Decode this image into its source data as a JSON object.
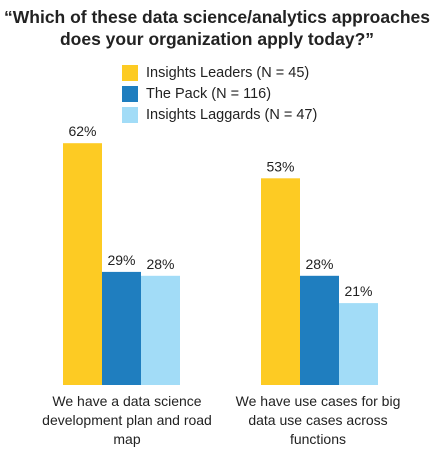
{
  "chart_data": {
    "type": "bar",
    "title": "“Which of these data science/analytics approaches does your organization apply today?”",
    "categories": [
      "We have a data science development plan and road map",
      "We have use cases for big data use cases across functions"
    ],
    "series": [
      {
        "name": "Insights Leaders (N = 45)",
        "values": [
          62,
          53
        ],
        "color": "#FDCB23"
      },
      {
        "name": "The Pack (N = 116)",
        "values": [
          29,
          28
        ],
        "color": "#1F7EBF"
      },
      {
        "name": "Insights Laggards (N = 47)",
        "values": [
          28,
          21
        ],
        "color": "#A2DCF7"
      }
    ],
    "value_suffix": "%",
    "legend": "top",
    "grid": false
  }
}
